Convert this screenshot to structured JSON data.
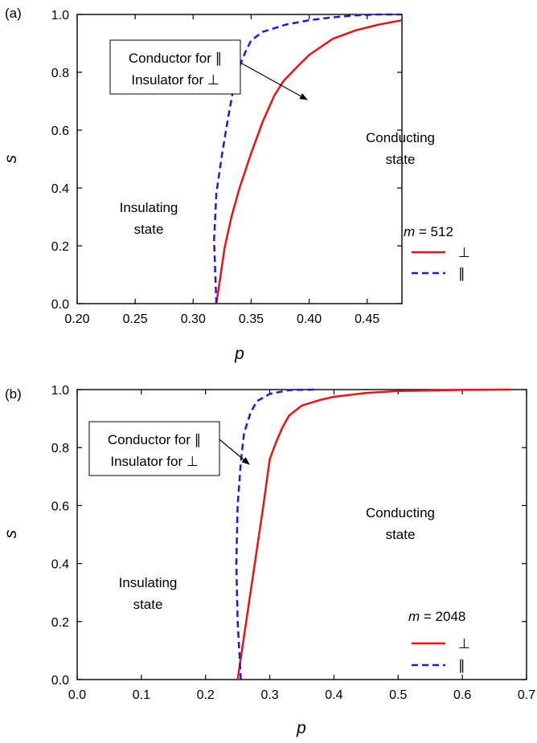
{
  "colors": {
    "perp": "#ee1111",
    "par": "#1a1ae6",
    "axis": "#000000"
  },
  "chart_data": [
    {
      "type": "line",
      "panel_label": "(a)",
      "xlabel": "p",
      "ylabel": "s",
      "xlim": [
        0.2,
        0.48
      ],
      "ylim": [
        0.0,
        1.0
      ],
      "xticks": [
        0.2,
        0.25,
        0.3,
        0.35,
        0.4,
        0.45
      ],
      "xtick_labels": [
        "0.20",
        "0.25",
        "0.30",
        "0.35",
        "0.40",
        "0.45"
      ],
      "yticks": [
        0.0,
        0.2,
        0.4,
        0.6,
        0.8,
        1.0
      ],
      "ytick_labels": [
        "0.0",
        "0.2",
        "0.4",
        "0.6",
        "0.8",
        "1.0"
      ],
      "grid": false,
      "legend": {
        "title_italic": "m",
        "title_rest": " = 512",
        "position": "bottom-right"
      },
      "annotations": {
        "box_line1": "Conductor for ∥",
        "box_line2": "Insulator for ⊥",
        "insulating_1": "Insulating",
        "insulating_2": "state",
        "conducting_1": "Conducting",
        "conducting_2": "state"
      },
      "series": [
        {
          "name": "⊥",
          "style": "solid",
          "x": [
            0.32,
            0.323,
            0.327,
            0.333,
            0.34,
            0.35,
            0.36,
            0.37,
            0.378,
            0.39,
            0.4,
            0.42,
            0.44,
            0.46,
            0.48
          ],
          "y": [
            0.0,
            0.08,
            0.19,
            0.3,
            0.4,
            0.52,
            0.63,
            0.72,
            0.77,
            0.82,
            0.86,
            0.915,
            0.945,
            0.965,
            0.98
          ]
        },
        {
          "name": "∥",
          "style": "dashed",
          "x": [
            0.32,
            0.318,
            0.32,
            0.325,
            0.33,
            0.335,
            0.34,
            0.345,
            0.35,
            0.36,
            0.38,
            0.4,
            0.42,
            0.44,
            0.46,
            0.48
          ],
          "y": [
            0.0,
            0.22,
            0.38,
            0.52,
            0.64,
            0.75,
            0.82,
            0.87,
            0.91,
            0.94,
            0.965,
            0.98,
            0.99,
            0.997,
            1.0,
            1.0
          ]
        }
      ]
    },
    {
      "type": "line",
      "panel_label": "(b)",
      "xlabel": "p",
      "ylabel": "s",
      "xlim": [
        0.0,
        0.7
      ],
      "ylim": [
        0.0,
        1.0
      ],
      "xticks": [
        0.0,
        0.1,
        0.2,
        0.3,
        0.4,
        0.5,
        0.6,
        0.7
      ],
      "xtick_labels": [
        "0.0",
        "0.1",
        "0.2",
        "0.3",
        "0.4",
        "0.5",
        "0.6",
        "0.7"
      ],
      "yticks": [
        0.0,
        0.2,
        0.4,
        0.6,
        0.8,
        1.0
      ],
      "ytick_labels": [
        "0.0",
        "0.2",
        "0.4",
        "0.6",
        "0.8",
        "1.0"
      ],
      "grid": false,
      "legend": {
        "title_italic": "m",
        "title_rest": " = 2048",
        "position": "bottom-right"
      },
      "annotations": {
        "box_line1": "Conductor for ∥",
        "box_line2": "Insulator for ⊥",
        "insulating_1": "Insulating",
        "insulating_2": "state",
        "conducting_1": "Conducting",
        "conducting_2": "state"
      },
      "series": [
        {
          "name": "⊥",
          "style": "solid",
          "x": [
            0.25,
            0.26,
            0.27,
            0.28,
            0.29,
            0.3,
            0.31,
            0.32,
            0.33,
            0.35,
            0.38,
            0.4,
            0.45,
            0.5,
            0.6,
            0.675
          ],
          "y": [
            0.0,
            0.15,
            0.3,
            0.45,
            0.6,
            0.76,
            0.82,
            0.87,
            0.91,
            0.945,
            0.965,
            0.975,
            0.988,
            0.995,
            0.999,
            1.0
          ]
        },
        {
          "name": "∥",
          "style": "dashed",
          "x": [
            0.255,
            0.25,
            0.248,
            0.25,
            0.255,
            0.26,
            0.27,
            0.28,
            0.3,
            0.33,
            0.37
          ],
          "y": [
            0.0,
            0.2,
            0.4,
            0.6,
            0.75,
            0.85,
            0.92,
            0.96,
            0.985,
            0.998,
            1.0
          ]
        }
      ]
    }
  ]
}
